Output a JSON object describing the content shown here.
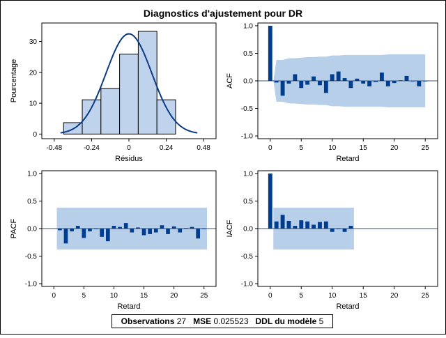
{
  "title": "Diagnostics d'ajustement pour DR",
  "stats": {
    "observations_label": "Observations",
    "observations_value": "27",
    "mse_label": "MSE",
    "mse_value": "0.025523",
    "ddl_label": "DDL du modèle",
    "ddl_value": "5"
  },
  "colors": {
    "bar": "#003d8f",
    "band": "#b8cfea",
    "hist_fill": "#bfd4ec",
    "curve": "#0a3a84"
  },
  "chart_data": [
    {
      "id": "histogram",
      "type": "bar",
      "xlabel": "Résidus",
      "ylabel": "Pourcentage",
      "xlim": [
        -0.56,
        0.56
      ],
      "ylim": [
        -1.5,
        36
      ],
      "xticks": [
        -0.48,
        -0.24,
        0,
        0.24,
        0.48
      ],
      "xtick_labels": [
        "-0.48",
        "-0.24",
        "0",
        "0.24",
        "0.48"
      ],
      "yticks": [
        0,
        10,
        20,
        30
      ],
      "ytick_labels": [
        "0",
        "10",
        "20",
        "30"
      ],
      "bin_edges": [
        -0.42,
        -0.3,
        -0.18,
        -0.06,
        0.06,
        0.18,
        0.3
      ],
      "values": [
        3.7,
        11.1,
        14.8,
        25.9,
        33.3,
        11.1
      ],
      "normal_curve": {
        "mean": 0,
        "sd": 0.1473,
        "xrange": [
          -0.44,
          0.44
        ],
        "scale": 0.12
      }
    },
    {
      "id": "acf",
      "type": "bar",
      "xlabel": "Retard",
      "ylabel": "ACF",
      "xlim": [
        -2,
        27
      ],
      "ylim": [
        -1.05,
        1.05
      ],
      "xticks": [
        0,
        5,
        10,
        15,
        20,
        25
      ],
      "xtick_labels": [
        "0",
        "5",
        "10",
        "15",
        "20",
        "25"
      ],
      "yticks": [
        -1,
        -0.5,
        0,
        0.5,
        1
      ],
      "ytick_labels": [
        "-1.0",
        "-0.5",
        "0.0",
        "0.5",
        "1.0"
      ],
      "lags": [
        0,
        1,
        2,
        3,
        4,
        5,
        6,
        7,
        8,
        9,
        10,
        11,
        12,
        13,
        14,
        15,
        16,
        17,
        18,
        19,
        20,
        21,
        22,
        23,
        24,
        25
      ],
      "values": [
        1.0,
        -0.03,
        -0.27,
        -0.05,
        0.12,
        -0.13,
        -0.07,
        0.08,
        -0.08,
        -0.22,
        0.12,
        0.17,
        0.05,
        -0.13,
        0.04,
        -0.05,
        -0.1,
        -0.02,
        0.15,
        -0.1,
        -0.04,
        0.01,
        0.09,
        0.0,
        -0.1,
        0.0
      ],
      "band": {
        "lags": [
          1,
          2,
          3,
          4,
          5,
          6,
          7,
          8,
          9,
          10,
          11,
          12,
          13,
          14,
          15,
          16,
          17,
          18,
          19,
          20,
          21,
          22,
          23,
          24,
          25
        ],
        "upper": [
          0.38,
          0.38,
          0.41,
          0.41,
          0.42,
          0.43,
          0.43,
          0.44,
          0.44,
          0.46,
          0.46,
          0.47,
          0.47,
          0.47,
          0.47,
          0.47,
          0.47,
          0.47,
          0.48,
          0.48,
          0.48,
          0.48,
          0.48,
          0.48,
          0.48
        ]
      }
    },
    {
      "id": "pacf",
      "type": "bar",
      "xlabel": "Retard",
      "ylabel": "PACF",
      "xlim": [
        -2,
        27
      ],
      "ylim": [
        -1.05,
        1.05
      ],
      "xticks": [
        0,
        5,
        10,
        15,
        20,
        25
      ],
      "xtick_labels": [
        "0",
        "5",
        "10",
        "15",
        "20",
        "25"
      ],
      "yticks": [
        -1,
        -0.5,
        0,
        0.5,
        1
      ],
      "ytick_labels": [
        "-1.0",
        "-0.5",
        "0.0",
        "0.5",
        "1.0"
      ],
      "lags": [
        1,
        2,
        3,
        4,
        5,
        6,
        7,
        8,
        9,
        10,
        11,
        12,
        13,
        14,
        15,
        16,
        17,
        18,
        19,
        20,
        21,
        22,
        23,
        24,
        25
      ],
      "values": [
        -0.03,
        -0.27,
        -0.05,
        0.05,
        -0.17,
        -0.05,
        0.0,
        -0.15,
        -0.23,
        0.05,
        0.03,
        0.1,
        -0.07,
        0.02,
        -0.12,
        -0.1,
        -0.07,
        0.06,
        -0.1,
        0.04,
        -0.07,
        0.01,
        0.03,
        -0.18,
        0.0
      ],
      "band": {
        "lags": [
          1,
          25
        ],
        "upper": [
          0.38,
          0.38
        ]
      }
    },
    {
      "id": "iacf",
      "type": "bar",
      "xlabel": "Retard",
      "ylabel": "IACF",
      "xlim": [
        -2,
        27
      ],
      "ylim": [
        -1.05,
        1.05
      ],
      "xticks": [
        0,
        5,
        10,
        15,
        20,
        25
      ],
      "xtick_labels": [
        "0",
        "5",
        "10",
        "15",
        "20",
        "25"
      ],
      "yticks": [
        -1,
        -0.5,
        0,
        0.5,
        1
      ],
      "ytick_labels": [
        "-1.0",
        "-0.5",
        "0.0",
        "0.5",
        "1.0"
      ],
      "lags": [
        0,
        1,
        2,
        3,
        4,
        5,
        6,
        7,
        8,
        9,
        10,
        11,
        12,
        13
      ],
      "values": [
        1.0,
        0.13,
        0.25,
        0.14,
        0.05,
        0.15,
        0.13,
        0.07,
        0.12,
        0.13,
        -0.06,
        0.0,
        -0.06,
        0.05
      ],
      "band": {
        "lags": [
          1,
          13
        ],
        "upper": [
          0.38,
          0.38
        ]
      }
    }
  ]
}
